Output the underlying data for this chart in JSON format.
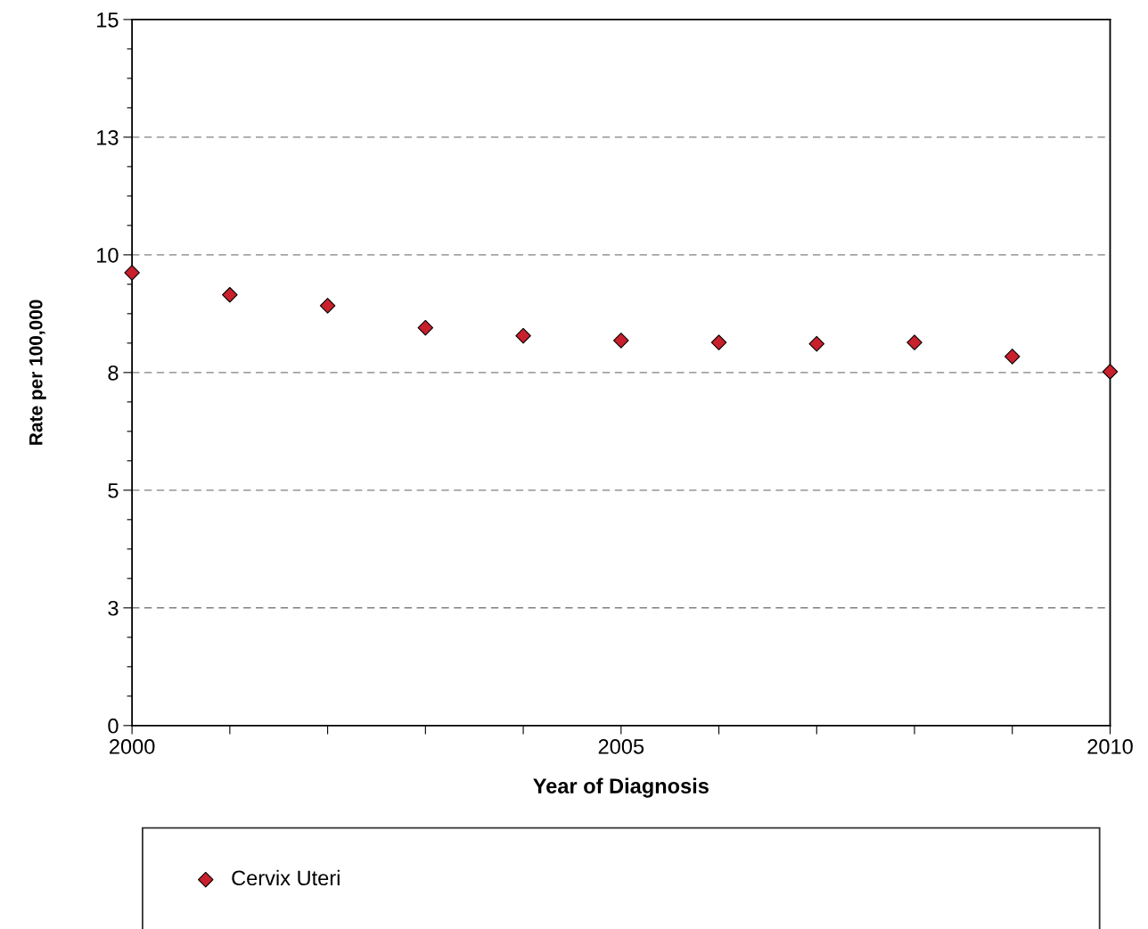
{
  "chart_data": {
    "type": "scatter",
    "xlabel": "Year of Diagnosis",
    "ylabel": "Rate per 100,000",
    "x": [
      2000,
      2001,
      2002,
      2003,
      2004,
      2005,
      2006,
      2007,
      2008,
      2009,
      2010
    ],
    "series": [
      {
        "name": "Cervix Uteri",
        "color": "#c8202c",
        "values": [
          9.62,
          9.15,
          8.92,
          8.45,
          8.28,
          8.18,
          8.14,
          8.11,
          8.14,
          7.84,
          7.52
        ]
      }
    ],
    "xlim": [
      2000,
      2010
    ],
    "xticks": [
      2000,
      {
        "value": 2001,
        "label": null
      },
      {
        "value": 2002,
        "label": null
      },
      {
        "value": 2003,
        "label": null
      },
      {
        "value": 2004,
        "label": null
      },
      2005,
      {
        "value": 2006,
        "label": null
      },
      {
        "value": 2007,
        "label": null
      },
      {
        "value": 2008,
        "label": null
      },
      {
        "value": 2009,
        "label": null
      },
      2010
    ],
    "ylim": [
      0,
      15
    ],
    "yticks": [
      0,
      {
        "value": 0.625,
        "label": null
      },
      {
        "value": 1.25,
        "label": null
      },
      {
        "value": 1.875,
        "label": null
      },
      {
        "value": 2.5,
        "label": "3"
      },
      {
        "value": 3.125,
        "label": null
      },
      {
        "value": 3.75,
        "label": null
      },
      {
        "value": 4.375,
        "label": null
      },
      5,
      {
        "value": 5.625,
        "label": null
      },
      {
        "value": 6.25,
        "label": null
      },
      {
        "value": 6.875,
        "label": null
      },
      {
        "value": 7.5,
        "label": "8"
      },
      {
        "value": 8.125,
        "label": null
      },
      {
        "value": 8.75,
        "label": null
      },
      {
        "value": 9.375,
        "label": null
      },
      10,
      {
        "value": 10.625,
        "label": null
      },
      {
        "value": 11.25,
        "label": null
      },
      {
        "value": 11.875,
        "label": null
      },
      {
        "value": 12.5,
        "label": "13"
      },
      {
        "value": 13.125,
        "label": null
      },
      {
        "value": 13.75,
        "label": null
      },
      {
        "value": 14.375,
        "label": null
      },
      15
    ],
    "grid": "y",
    "legend": "bottom",
    "marker": "diamond"
  }
}
